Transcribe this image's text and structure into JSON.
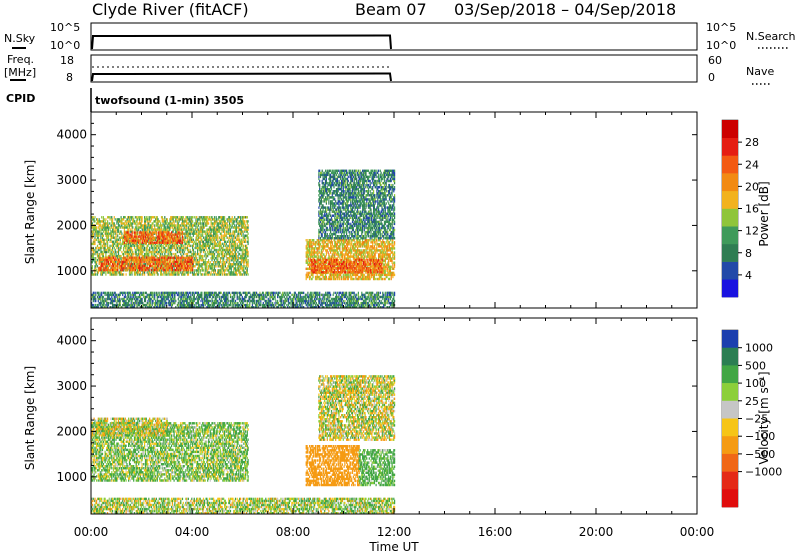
{
  "header": {
    "title": "Clyde River (fitACF)",
    "beam": "Beam 07",
    "date_range": "03/Sep/2018 – 04/Sep/2018"
  },
  "strips": {
    "nsky_label": "N.Sky",
    "nsky_ticks": [
      "10^5",
      "10^0"
    ],
    "nsearch_label": "N.Search",
    "nsearch_ticks": [
      "10^5",
      "10^0"
    ],
    "freq_label_1": "Freq.",
    "freq_label_2": "[MHz]",
    "freq_ticks": [
      "18",
      "8"
    ],
    "nave_label": "Nave",
    "nave_ticks": [
      "60",
      "0"
    ],
    "cpid_label": "CPID",
    "cpid_value": "twofsound (1-min) 3505"
  },
  "colors": {
    "power_scale": [
      "#1a12e0",
      "#2249a8",
      "#2f7d52",
      "#3f9a5a",
      "#8fc53a",
      "#f2b21e",
      "#f28a12",
      "#f35a12",
      "#e51d12",
      "#cc0000"
    ],
    "velocity_scale": [
      "#1c3fae",
      "#2b7e52",
      "#42a645",
      "#8ccf3a",
      "#c6c6c6",
      "#f6c517",
      "#f59b13",
      "#f06716",
      "#e42a16",
      "#e00d0d"
    ]
  },
  "chart_data": [
    {
      "type": "heatmap",
      "name": "Power",
      "ylabel": "Slant Range [km]",
      "ylim": [
        180,
        4500
      ],
      "xlim": [
        0,
        24
      ],
      "yticks": [
        "1000",
        "2000",
        "3000",
        "4000"
      ],
      "colorbar": {
        "label": "Power [dB]",
        "ticks": [
          "4",
          "8",
          "12",
          "16",
          "20",
          "24",
          "28"
        ],
        "range": [
          0,
          32
        ]
      },
      "data_extent_hours": [
        0,
        12
      ],
      "echo_regions": [
        {
          "t": [
            0.0,
            6.2
          ],
          "range_km": [
            900,
            2200
          ],
          "typical": 14
        },
        {
          "t": [
            0.3,
            4.0
          ],
          "range_km": [
            1000,
            1300
          ],
          "typical": 24
        },
        {
          "t": [
            1.3,
            3.6
          ],
          "range_km": [
            1600,
            1850
          ],
          "typical": 24
        },
        {
          "t": [
            8.5,
            12.0
          ],
          "range_km": [
            800,
            1700
          ],
          "typical": 18
        },
        {
          "t": [
            8.7,
            11.5
          ],
          "range_km": [
            950,
            1250
          ],
          "typical": 24
        },
        {
          "t": [
            9.0,
            12.0
          ],
          "range_km": [
            1700,
            3200
          ],
          "typical": 8
        },
        {
          "t": [
            0.0,
            12.0
          ],
          "range_km": [
            180,
            500
          ],
          "typical": 8
        }
      ]
    },
    {
      "type": "heatmap",
      "name": "Velocity",
      "ylabel": "Slant Range [km]",
      "ylim": [
        180,
        4500
      ],
      "xlim": [
        0,
        24
      ],
      "yticks": [
        "1000",
        "2000",
        "3000",
        "4000"
      ],
      "xticks": [
        "00:00",
        "04:00",
        "08:00",
        "12:00",
        "16:00",
        "20:00",
        "00:00"
      ],
      "xlabel": "Time UT",
      "colorbar": {
        "label": "Velocity [m s⁻¹]",
        "ticks": [
          "1000",
          "500",
          "100",
          "25",
          "−25",
          "−100",
          "−500",
          "−1000"
        ]
      },
      "data_extent_hours": [
        0,
        12
      ],
      "echo_regions": [
        {
          "t": [
            0.0,
            6.2
          ],
          "range_km": [
            900,
            2200
          ],
          "typical": 100
        },
        {
          "t": [
            0.0,
            3.0
          ],
          "range_km": [
            1900,
            2300
          ],
          "typical": 0
        },
        {
          "t": [
            8.5,
            10.6
          ],
          "range_km": [
            800,
            1700
          ],
          "typical": -300
        },
        {
          "t": [
            10.6,
            12.0
          ],
          "range_km": [
            800,
            1600
          ],
          "typical": 200
        },
        {
          "t": [
            9.0,
            12.0
          ],
          "range_km": [
            1800,
            3200
          ],
          "typical": 0
        },
        {
          "t": [
            0.0,
            12.0
          ],
          "range_km": [
            180,
            500
          ],
          "typical": 50
        }
      ]
    }
  ]
}
